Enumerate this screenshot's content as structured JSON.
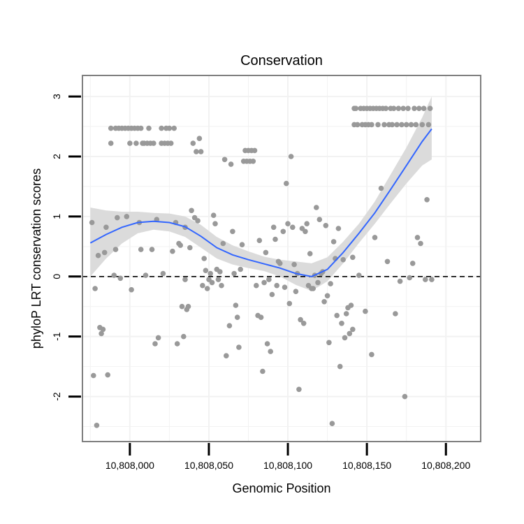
{
  "chart_data": {
    "type": "scatter",
    "title": "Conservation",
    "xlabel": "Genomic Position",
    "ylabel": "phyloP LRT conservation scores",
    "xlim": [
      10807970,
      10808222
    ],
    "ylim": [
      -2.75,
      3.35
    ],
    "x_ticks": [
      10808000,
      10808050,
      10808100,
      10808150,
      10808200
    ],
    "x_tick_labels": [
      "10,808,000",
      "10,808,050",
      "10,808,100",
      "10,808,150",
      "10,808,200"
    ],
    "y_ticks": [
      -2,
      -1,
      0,
      1,
      2,
      3
    ],
    "y_tick_labels": [
      "-2",
      "-1",
      "0",
      "1",
      "2",
      "3"
    ],
    "reference_line": {
      "y": 0,
      "style": "dashed"
    },
    "colors": {
      "points": "#999999",
      "smooth": "#3366FF",
      "band": "#d9d9d9",
      "panel_border": "#7f7f7f",
      "grid": "#f2f2f2"
    },
    "series": [
      {
        "name": "scores",
        "points": [
          [
            10807976,
            0.9
          ],
          [
            10807977,
            -1.65
          ],
          [
            10807978,
            -0.2
          ],
          [
            10807979,
            -2.48
          ],
          [
            10807980,
            0.35
          ],
          [
            10807981,
            -0.85
          ],
          [
            10807982,
            -0.95
          ],
          [
            10807983,
            -0.88
          ],
          [
            10807984,
            0.4
          ],
          [
            10807985,
            0.82
          ],
          [
            10807986,
            -1.64
          ],
          [
            10807988,
            2.47
          ],
          [
            10807988,
            2.22
          ],
          [
            10807990,
            0.02
          ],
          [
            10807991,
            2.47
          ],
          [
            10807991,
            0.45
          ],
          [
            10807992,
            0.98
          ],
          [
            10807993,
            2.47
          ],
          [
            10807994,
            -0.03
          ],
          [
            10807995,
            2.47
          ],
          [
            10807997,
            2.47
          ],
          [
            10807998,
            1.0
          ],
          [
            10807999,
            2.47
          ],
          [
            10808000,
            2.22
          ],
          [
            10808001,
            -0.22
          ],
          [
            10808001,
            2.47
          ],
          [
            10808003,
            2.47
          ],
          [
            10808004,
            2.22
          ],
          [
            10808005,
            2.47
          ],
          [
            10808006,
            0.9
          ],
          [
            10808007,
            2.47
          ],
          [
            10808007,
            0.45
          ],
          [
            10808008,
            2.22
          ],
          [
            10808009,
            2.22
          ],
          [
            10808010,
            0.02
          ],
          [
            10808011,
            2.22
          ],
          [
            10808012,
            2.47
          ],
          [
            10808013,
            2.22
          ],
          [
            10808014,
            0.45
          ],
          [
            10808015,
            2.22
          ],
          [
            10808016,
            -1.12
          ],
          [
            10808017,
            0.95
          ],
          [
            10808018,
            -1.02
          ],
          [
            10808020,
            2.47
          ],
          [
            10808020,
            2.22
          ],
          [
            10808021,
            0.05
          ],
          [
            10808022,
            2.22
          ],
          [
            10808023,
            2.47
          ],
          [
            10808024,
            2.22
          ],
          [
            10808025,
            2.47
          ],
          [
            10808026,
            2.22
          ],
          [
            10808027,
            0.42
          ],
          [
            10808028,
            2.47
          ],
          [
            10808029,
            0.9
          ],
          [
            10808030,
            -1.12
          ],
          [
            10808031,
            0.55
          ],
          [
            10808032,
            0.52
          ],
          [
            10808033,
            -0.5
          ],
          [
            10808034,
            -1.0
          ],
          [
            10808035,
            0.82
          ],
          [
            10808035,
            -0.05
          ],
          [
            10808036,
            -0.55
          ],
          [
            10808037,
            -0.5
          ],
          [
            10808038,
            0.48
          ],
          [
            10808039,
            1.1
          ],
          [
            10808040,
            2.22
          ],
          [
            10808041,
            0.98
          ],
          [
            10808042,
            2.08
          ],
          [
            10808043,
            0.93
          ],
          [
            10808044,
            2.3
          ],
          [
            10808045,
            2.08
          ],
          [
            10808046,
            -0.15
          ],
          [
            10808047,
            0.3
          ],
          [
            10808048,
            0.1
          ],
          [
            10808049,
            -0.2
          ],
          [
            10808050,
            -0.05
          ],
          [
            10808051,
            0.05
          ],
          [
            10808052,
            -0.1
          ],
          [
            10808053,
            1.02
          ],
          [
            10808054,
            0.88
          ],
          [
            10808055,
            0.12
          ],
          [
            10808056,
            -0.05
          ],
          [
            10808057,
            0.08
          ],
          [
            10808058,
            -0.15
          ],
          [
            10808059,
            0.55
          ],
          [
            10808060,
            1.95
          ],
          [
            10808061,
            -1.32
          ],
          [
            10808063,
            -0.82
          ],
          [
            10808064,
            1.87
          ],
          [
            10808065,
            0.75
          ],
          [
            10808066,
            0.05
          ],
          [
            10808067,
            -0.48
          ],
          [
            10808068,
            -0.68
          ],
          [
            10808069,
            -1.18
          ],
          [
            10808070,
            0.12
          ],
          [
            10808071,
            0.53
          ],
          [
            10808072,
            1.92
          ],
          [
            10808073,
            2.1
          ],
          [
            10808074,
            1.92
          ],
          [
            10808075,
            2.1
          ],
          [
            10808076,
            1.92
          ],
          [
            10808077,
            2.1
          ],
          [
            10808078,
            1.92
          ],
          [
            10808079,
            2.1
          ],
          [
            10808080,
            -0.15
          ],
          [
            10808081,
            -0.65
          ],
          [
            10808082,
            0.6
          ],
          [
            10808083,
            -0.68
          ],
          [
            10808084,
            -1.58
          ],
          [
            10808085,
            -0.1
          ],
          [
            10808086,
            0.4
          ],
          [
            10808087,
            -1.12
          ],
          [
            10808088,
            -0.05
          ],
          [
            10808089,
            -1.25
          ],
          [
            10808090,
            -0.3
          ],
          [
            10808091,
            0.82
          ],
          [
            10808092,
            0.62
          ],
          [
            10808093,
            -0.15
          ],
          [
            10808094,
            0.25
          ],
          [
            10808095,
            0.22
          ],
          [
            10808097,
            0.75
          ],
          [
            10808098,
            -0.18
          ],
          [
            10808099,
            1.55
          ],
          [
            10808100,
            0.88
          ],
          [
            10808101,
            -0.45
          ],
          [
            10808102,
            2.0
          ],
          [
            10808103,
            0.82
          ],
          [
            10808104,
            0.2
          ],
          [
            10808105,
            -0.25
          ],
          [
            10808106,
            0.05
          ],
          [
            10808107,
            -1.88
          ],
          [
            10808108,
            -0.72
          ],
          [
            10808109,
            0.8
          ],
          [
            10808110,
            -0.78
          ],
          [
            10808111,
            0.75
          ],
          [
            10808112,
            0.88
          ],
          [
            10808113,
            -0.15
          ],
          [
            10808114,
            0.38
          ],
          [
            10808115,
            -0.2
          ],
          [
            10808116,
            -0.2
          ],
          [
            10808117,
            0.02
          ],
          [
            10808118,
            1.15
          ],
          [
            10808119,
            -0.1
          ],
          [
            10808120,
            0.95
          ],
          [
            10808121,
            0.05
          ],
          [
            10808122,
            0.08
          ],
          [
            10808123,
            -0.42
          ],
          [
            10808124,
            0.85
          ],
          [
            10808125,
            -0.32
          ],
          [
            10808126,
            -1.1
          ],
          [
            10808127,
            -0.12
          ],
          [
            10808128,
            -2.45
          ],
          [
            10808129,
            0.58
          ],
          [
            10808130,
            0.3
          ],
          [
            10808131,
            -0.65
          ],
          [
            10808132,
            0.8
          ],
          [
            10808133,
            -1.5
          ],
          [
            10808134,
            -0.78
          ],
          [
            10808135,
            0.28
          ],
          [
            10808136,
            -1.02
          ],
          [
            10808137,
            -0.62
          ],
          [
            10808138,
            -0.52
          ],
          [
            10808139,
            -0.95
          ],
          [
            10808140,
            -0.48
          ],
          [
            10808141,
            -0.88
          ],
          [
            10808141,
            0.32
          ],
          [
            10808142,
            2.8
          ],
          [
            10808142,
            2.53
          ],
          [
            10808143,
            2.8
          ],
          [
            10808144,
            2.53
          ],
          [
            10808145,
            0.02
          ],
          [
            10808146,
            2.8
          ],
          [
            10808147,
            2.53
          ],
          [
            10808148,
            2.8
          ],
          [
            10808149,
            -0.58
          ],
          [
            10808149,
            2.53
          ],
          [
            10808150,
            2.8
          ],
          [
            10808151,
            2.53
          ],
          [
            10808152,
            2.8
          ],
          [
            10808153,
            -1.3
          ],
          [
            10808153,
            2.53
          ],
          [
            10808154,
            2.8
          ],
          [
            10808155,
            0.65
          ],
          [
            10808156,
            2.8
          ],
          [
            10808157,
            2.53
          ],
          [
            10808158,
            2.8
          ],
          [
            10808159,
            1.47
          ],
          [
            10808160,
            2.8
          ],
          [
            10808161,
            2.53
          ],
          [
            10808162,
            2.8
          ],
          [
            10808163,
            0.25
          ],
          [
            10808164,
            2.53
          ],
          [
            10808165,
            2.8
          ],
          [
            10808166,
            2.53
          ],
          [
            10808167,
            2.8
          ],
          [
            10808168,
            -0.62
          ],
          [
            10808169,
            2.53
          ],
          [
            10808170,
            2.8
          ],
          [
            10808171,
            -0.08
          ],
          [
            10808172,
            2.53
          ],
          [
            10808173,
            2.8
          ],
          [
            10808174,
            -2.0
          ],
          [
            10808175,
            2.53
          ],
          [
            10808176,
            2.8
          ],
          [
            10808177,
            -0.02
          ],
          [
            10808178,
            2.53
          ],
          [
            10808179,
            0.22
          ],
          [
            10808180,
            2.8
          ],
          [
            10808181,
            2.53
          ],
          [
            10808182,
            0.65
          ],
          [
            10808183,
            2.8
          ],
          [
            10808184,
            0.55
          ],
          [
            10808185,
            2.53
          ],
          [
            10808186,
            2.8
          ],
          [
            10808187,
            -0.05
          ],
          [
            10808188,
            1.28
          ],
          [
            10808189,
            2.53
          ],
          [
            10808190,
            2.8
          ],
          [
            10808191,
            -0.05
          ]
        ]
      }
    ],
    "smooth": {
      "method": "loess",
      "x": [
        10807975,
        10807985,
        10807995,
        10808005,
        10808015,
        10808025,
        10808035,
        10808045,
        10808055,
        10808065,
        10808075,
        10808085,
        10808095,
        10808105,
        10808115,
        10808125,
        10808135,
        10808145,
        10808155,
        10808165,
        10808175,
        10808185,
        10808191
      ],
      "y": [
        0.56,
        0.7,
        0.82,
        0.9,
        0.92,
        0.9,
        0.83,
        0.67,
        0.48,
        0.36,
        0.28,
        0.21,
        0.14,
        0.05,
        0.0,
        0.12,
        0.4,
        0.72,
        1.06,
        1.45,
        1.85,
        2.25,
        2.46
      ],
      "lower": [
        0.0,
        0.3,
        0.55,
        0.72,
        0.78,
        0.75,
        0.66,
        0.48,
        0.3,
        0.2,
        0.14,
        0.09,
        0.0,
        -0.14,
        -0.24,
        -0.08,
        0.22,
        0.56,
        0.88,
        1.22,
        1.55,
        1.85,
        1.95
      ],
      "upper": [
        1.15,
        1.1,
        1.08,
        1.08,
        1.06,
        1.05,
        1.0,
        0.86,
        0.66,
        0.52,
        0.42,
        0.33,
        0.28,
        0.25,
        0.22,
        0.32,
        0.58,
        0.88,
        1.25,
        1.7,
        2.15,
        2.65,
        3.0
      ]
    }
  }
}
